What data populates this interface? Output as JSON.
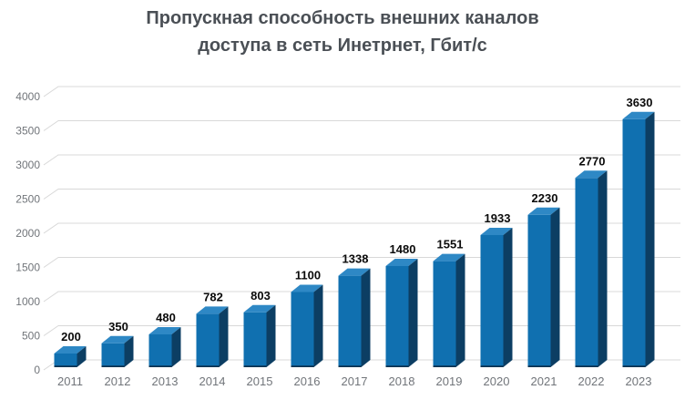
{
  "title": {
    "line1": "Пропускная способность внешних каналов",
    "line2": "доступа в сеть Инетрнет, Гбит/с"
  },
  "chart_data": {
    "type": "bar",
    "style": "3d-column",
    "title": "Пропускная способность внешних каналов доступа в сеть Инетрнет, Гбит/с",
    "categories": [
      "2011",
      "2012",
      "2013",
      "2014",
      "2015",
      "2016",
      "2017",
      "2018",
      "2019",
      "2020",
      "2021",
      "2022",
      "2023"
    ],
    "values": [
      200,
      350,
      480,
      782,
      803,
      1100,
      1338,
      1480,
      1551,
      1933,
      2230,
      2770,
      3630
    ],
    "data_labels": [
      "200",
      "350",
      "480",
      "782",
      "803",
      "1100",
      "1338",
      "1480",
      "1551",
      "1933",
      "2230",
      "2770",
      "3630"
    ],
    "xlabel": "",
    "ylabel": "",
    "ylim": [
      0,
      4000
    ],
    "yticks": [
      0,
      500,
      1000,
      1500,
      2000,
      2500,
      3000,
      3500,
      4000
    ],
    "grid": true,
    "legend": false,
    "colors": {
      "bar_front": "#1070B0",
      "bar_top": "#2E88C5",
      "bar_side": "#0C3E63",
      "bar_base_edge": "#0A3352",
      "gridline": "#D8D8D8",
      "axis_label": "#71757A",
      "data_label": "#0A0A0A",
      "title": "#4A4F55",
      "background": "#FFFFFF"
    }
  }
}
